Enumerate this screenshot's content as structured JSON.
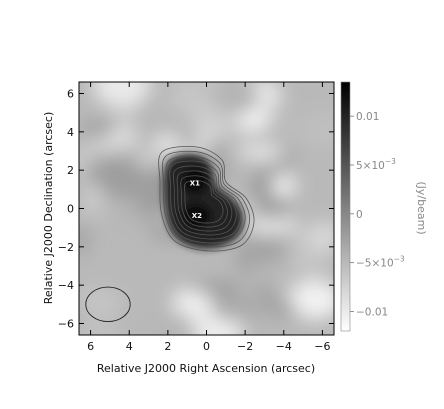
{
  "chart_data": {
    "type": "heatmap",
    "title": "",
    "xlabel": "Relative J2000 Right Ascension (arcsec)",
    "ylabel": "Relative J2000 Declination (arcsec)",
    "xlim": [
      6.6,
      -6.6
    ],
    "ylim": [
      -6.6,
      6.6
    ],
    "xticks": [
      6,
      4,
      2,
      0,
      -2,
      -4,
      -6
    ],
    "yticks": [
      -6,
      -4,
      -2,
      0,
      2,
      4,
      6
    ],
    "colorbar": {
      "label": "(Jy/beam)",
      "range": [
        -0.012,
        0.0135
      ],
      "ticks": [
        {
          "value": 0.01,
          "label": "0.01"
        },
        {
          "value": 0.005,
          "label": "5×10",
          "exp": "−3"
        },
        {
          "value": 0.0,
          "label": "0"
        },
        {
          "value": -0.005,
          "label": "−5×10",
          "exp": "−3"
        },
        {
          "value": -0.01,
          "label": "−0.01"
        }
      ],
      "colormap": "white-to-black"
    },
    "sources": [
      {
        "label": "X1",
        "x": 0.6,
        "y": 1.35
      },
      {
        "label": "X2",
        "x": 0.5,
        "y": -0.35
      }
    ],
    "beam": {
      "x": 5.1,
      "y": -5.0,
      "major": 2.3,
      "minor": 1.8,
      "angle": 0
    },
    "contour_levels": 8,
    "grid": false
  }
}
